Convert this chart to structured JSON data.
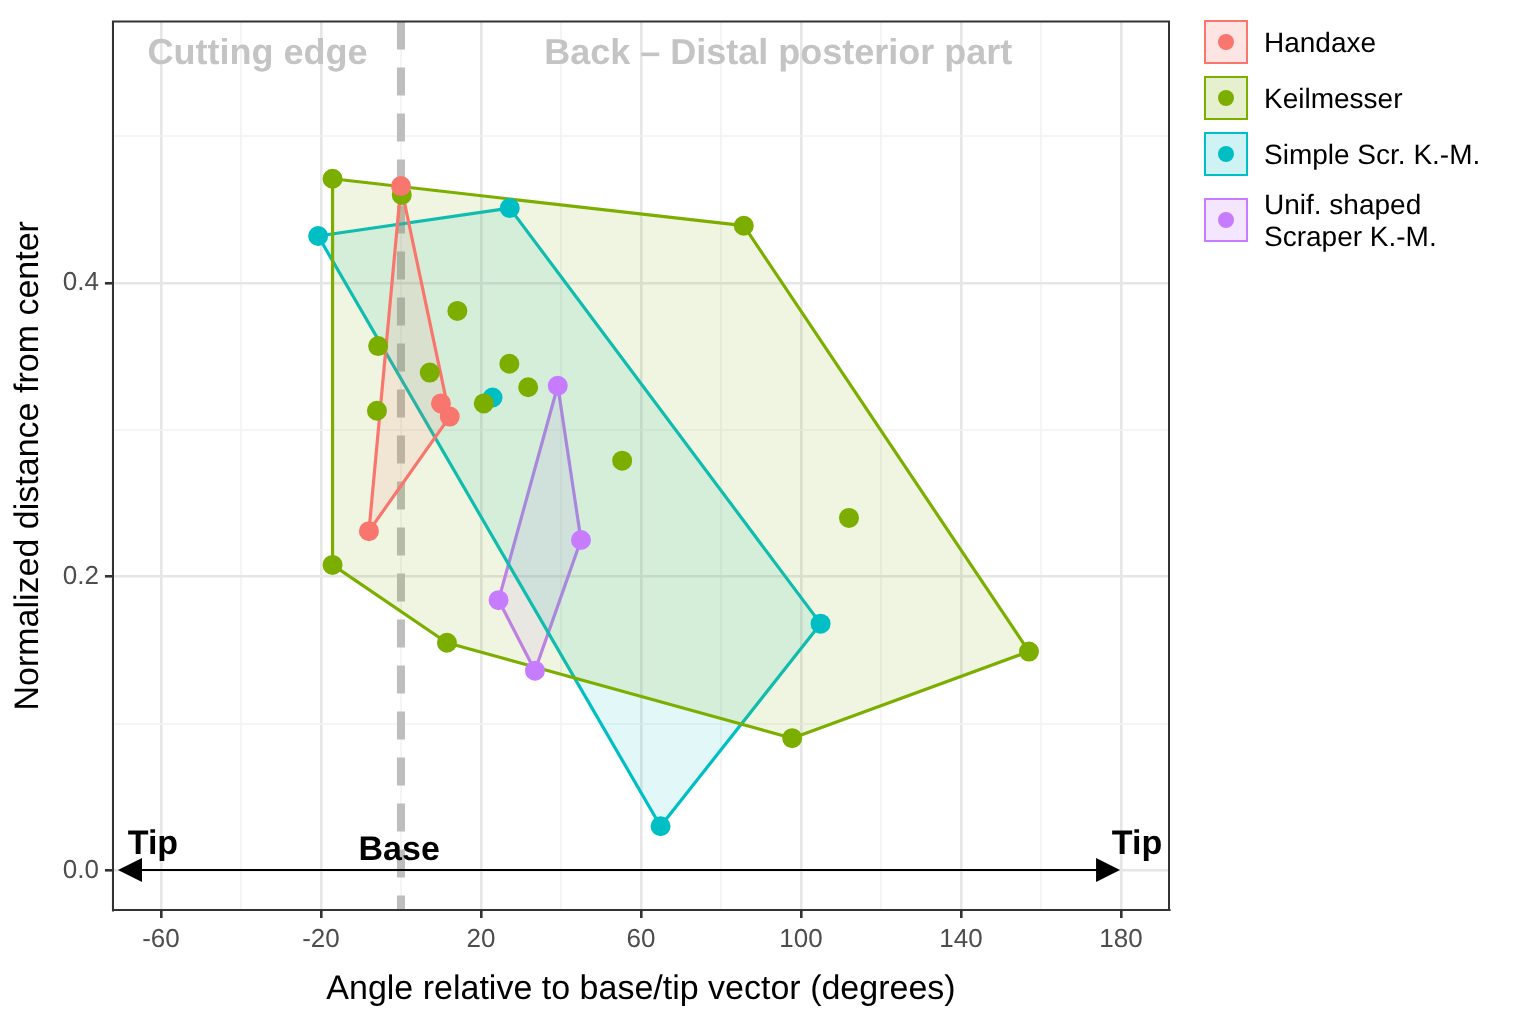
{
  "chart_data": {
    "type": "scatter",
    "xlabel": "Angle relative to base/tip vector (degrees)",
    "ylabel": "Normalized distance from center",
    "xlim": [
      -72,
      192
    ],
    "ylim": [
      -0.027,
      0.578
    ],
    "xticks": [
      -60,
      {
        "value": -40,
        "label": null
      },
      -20,
      {
        "value": 0,
        "label": null
      },
      20,
      {
        "value": 40,
        "label": null
      },
      60,
      {
        "value": 80,
        "label": null
      },
      100,
      {
        "value": 120,
        "label": null
      },
      140,
      {
        "value": 160,
        "label": null
      },
      180
    ],
    "yticks": [
      {
        "value": 0,
        "label": "0.0"
      },
      {
        "value": 0.1,
        "label": null
      },
      {
        "value": 0.2,
        "label": "0.2"
      },
      {
        "value": 0.3,
        "label": null
      },
      {
        "value": 0.4,
        "label": "0.4"
      },
      {
        "value": 0.5,
        "label": null
      }
    ],
    "grid": true,
    "legend": "right",
    "series": [
      {
        "name": "Handaxe",
        "marker": "circle",
        "color": "#f8766d",
        "x": [
          0,
          10,
          12.2,
          -8
        ],
        "values": [
          0.466,
          0.318,
          0.309,
          0.231
        ]
      },
      {
        "name": "Keilmesser",
        "marker": "circle",
        "color": "#7cae00",
        "x": [
          -17.1,
          0.2,
          14.1,
          -5.7,
          7.2,
          27.1,
          31.8,
          20.7,
          -6,
          55.3,
          -17.1,
          11.5,
          85.7,
          112,
          157,
          97.8
        ],
        "values": [
          0.471,
          0.46,
          0.381,
          0.357,
          0.339,
          0.345,
          0.329,
          0.318,
          0.313,
          0.279,
          0.208,
          0.155,
          0.439,
          0.24,
          0.149,
          0.09
        ]
      },
      {
        "name": "Simple Scr. K.-M.",
        "marker": "circle",
        "color": "#00bfc4",
        "x": [
          -20.7,
          27.2,
          22.9,
          104.9,
          64.9
        ],
        "values": [
          0.432,
          0.451,
          0.322,
          0.168,
          0.03
        ]
      },
      {
        "name": "Unif. shaped Scraper K.-M.",
        "marker": "circle",
        "color": "#c77cff",
        "x": [
          39.2,
          45,
          33.5,
          24.4
        ],
        "values": [
          0.33,
          0.225,
          0.136,
          0.184
        ]
      },
      {
        "type": "area",
        "color": "#f8766d",
        "x": [
          0,
          12.2,
          -8,
          0
        ],
        "values": [
          0.466,
          0.309,
          0.231,
          0.466
        ]
      },
      {
        "type": "area",
        "color": "#7cae00",
        "x": [
          -17.1,
          85.7,
          157,
          97.8,
          11.5,
          -17.1,
          -17.1
        ],
        "values": [
          0.471,
          0.439,
          0.149,
          0.09,
          0.155,
          0.208,
          0.471
        ]
      },
      {
        "type": "area",
        "color": "#00bfc4",
        "x": [
          -20.7,
          27.2,
          104.9,
          64.9,
          -20.7
        ],
        "values": [
          0.432,
          0.451,
          0.168,
          0.03,
          0.432
        ]
      },
      {
        "type": "area",
        "color": "#c77cff",
        "x": [
          39.2,
          45,
          33.5,
          24.4,
          39.2
        ],
        "values": [
          0.33,
          0.225,
          0.136,
          0.184,
          0.33
        ]
      }
    ],
    "ref_lines": [
      {
        "axis": "x",
        "value": 0,
        "color": "#bebebe",
        "line_style": "dashed"
      }
    ],
    "annotations": [
      "Cutting edge",
      "Back – Distal posterior part",
      "Tip",
      "Base",
      "Tip"
    ]
  }
}
